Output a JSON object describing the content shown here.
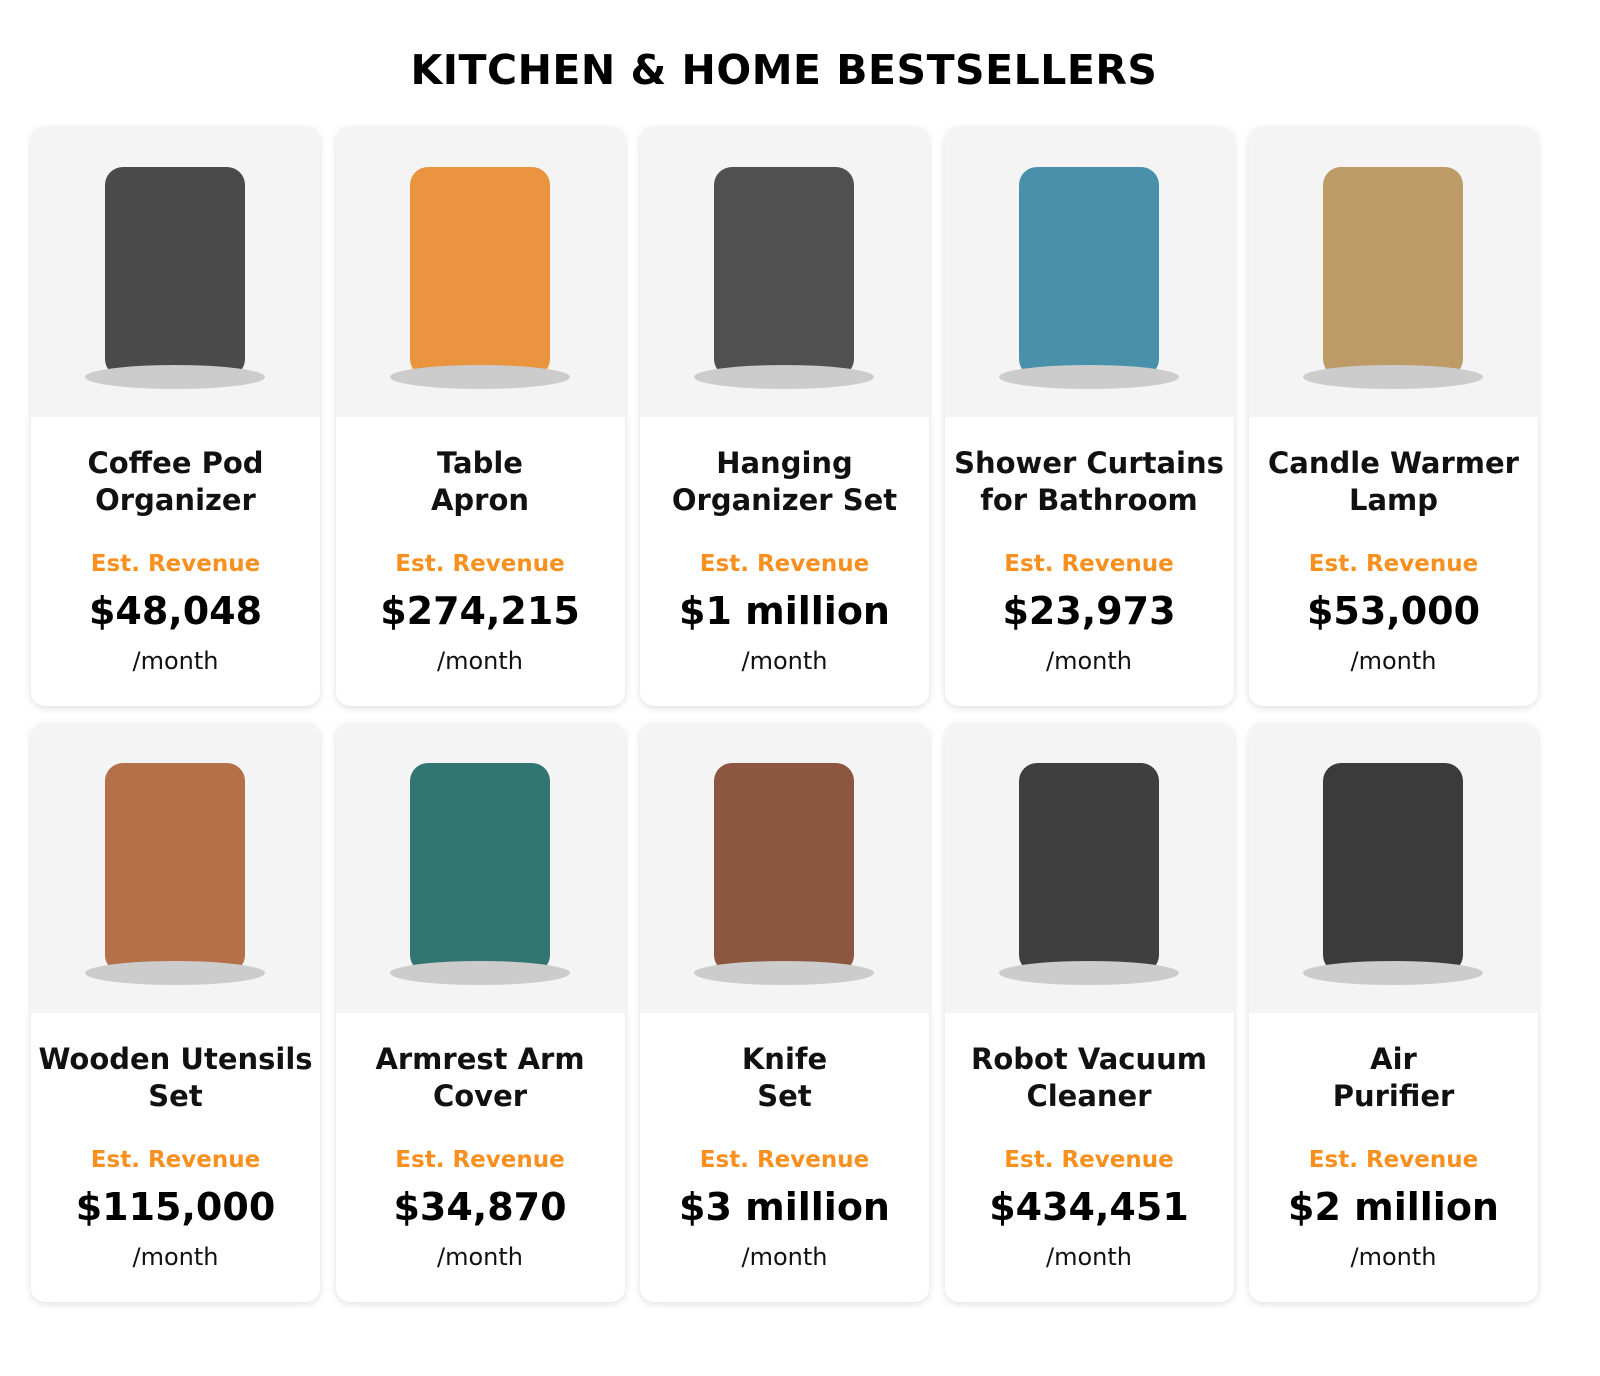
{
  "title": "KITCHEN & HOME BESTSELLERS",
  "products": [
    {
      "name": "Coffee Pod\nOrganizer",
      "label": "Est. Revenue",
      "revenue": "$48,048",
      "period": "/month",
      "icon": "coffee-pod-carousel",
      "color": "#2b2b2b"
    },
    {
      "name": "Table\nApron",
      "label": "Est. Revenue",
      "revenue": "$274,215",
      "period": "/month",
      "icon": "apron-box",
      "color": "#e8821e"
    },
    {
      "name": "Hanging\nOrganizer Set",
      "label": "Est. Revenue",
      "revenue": "$1 million",
      "period": "/month",
      "icon": "shower-shelves",
      "color": "#333333"
    },
    {
      "name": "Shower Curtains\nfor Bathroom",
      "label": "Est. Revenue",
      "revenue": "$23,973",
      "period": "/month",
      "icon": "sea-turtle-curtain",
      "color": "#2a7f9e"
    },
    {
      "name": "Candle Warmer\nLamp",
      "label": "Est. Revenue",
      "revenue": "$53,000",
      "period": "/month",
      "icon": "candle-lamp",
      "color": "#b38b4d"
    },
    {
      "name": "Wooden Utensils\nSet",
      "label": "Est. Revenue",
      "revenue": "$115,000",
      "period": "/month",
      "icon": "wooden-spoons",
      "color": "#a8582a"
    },
    {
      "name": "Armrest Arm\nCover",
      "label": "Est. Revenue",
      "revenue": "$34,870",
      "period": "/month",
      "icon": "armrest-cover",
      "color": "#0f5e5c"
    },
    {
      "name": "Knife\nSet",
      "label": "Est. Revenue",
      "revenue": "$3 million",
      "period": "/month",
      "icon": "knife-block",
      "color": "#7a3a1e"
    },
    {
      "name": "Robot Vacuum\nCleaner",
      "label": "Est. Revenue",
      "revenue": "$434,451",
      "period": "/month",
      "icon": "robot-vacuum",
      "color": "#1e1e1e"
    },
    {
      "name": "Air\nPurifier",
      "label": "Est. Revenue",
      "revenue": "$2 million",
      "period": "/month",
      "icon": "air-purifier",
      "color": "#1a1a1a"
    }
  ],
  "accent": "#f7901e"
}
